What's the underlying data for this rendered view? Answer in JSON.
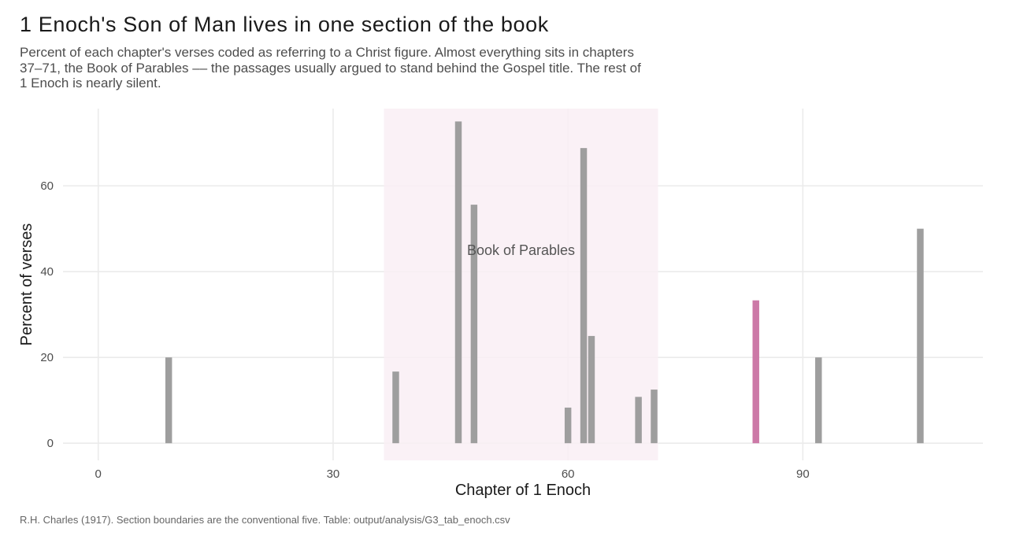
{
  "title": "1 Enoch's Son of Man lives in one section of the book",
  "subtitle": "Percent of each chapter's verses coded as referring to a Christ figure. Almost everything sits in chapters 37–71, the Book of Parables –– the passages usually argued to stand behind the Gospel title. The rest of 1 Enoch is nearly silent.",
  "caption": "R.H. Charles (1917). Section boundaries are the conventional five. Table: output/analysis/G3_tab_enoch.csv",
  "colors": {
    "bar": "#9e9e9e",
    "highlight_bar": "#cc79a7",
    "region_fill": "#f9eef4",
    "grid": "#ebebeb"
  },
  "chart_data": {
    "type": "bar",
    "xlabel": "Chapter of 1 Enoch",
    "ylabel": "Percent of verses",
    "xlim": [
      -4.5,
      113
    ],
    "ylim": [
      -4,
      78
    ],
    "x_ticks": [
      0,
      30,
      60,
      90
    ],
    "y_ticks": [
      0,
      20,
      40,
      60
    ],
    "grid": true,
    "region": {
      "label": "Book of Parables",
      "from": 36.5,
      "to": 71.5
    },
    "bars": [
      {
        "chapter": 9,
        "value": 20
      },
      {
        "chapter": 38,
        "value": 16.7
      },
      {
        "chapter": 46,
        "value": 75
      },
      {
        "chapter": 48,
        "value": 55.6
      },
      {
        "chapter": 60,
        "value": 8.3
      },
      {
        "chapter": 62,
        "value": 68.8
      },
      {
        "chapter": 63,
        "value": 25
      },
      {
        "chapter": 69,
        "value": 10.8
      },
      {
        "chapter": 71,
        "value": 12.5
      },
      {
        "chapter": 84,
        "value": 33.3,
        "highlight": true
      },
      {
        "chapter": 92,
        "value": 20
      },
      {
        "chapter": 105,
        "value": 50
      }
    ]
  }
}
